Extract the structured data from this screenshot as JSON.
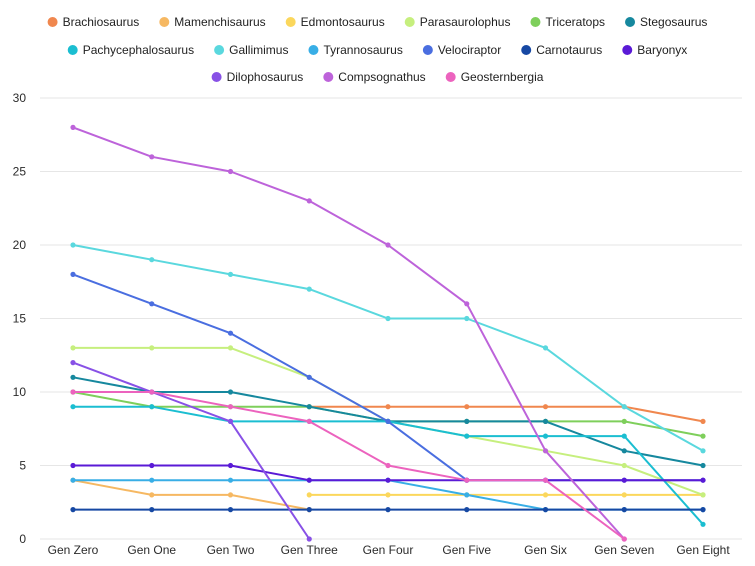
{
  "chart_data": {
    "type": "line",
    "title": "",
    "xlabel": "",
    "ylabel": "",
    "ylim": [
      0,
      30
    ],
    "yticks": [
      0,
      5,
      10,
      15,
      20,
      25,
      30
    ],
    "grid": "horizontal",
    "legend_position": "top",
    "categories": [
      "Gen Zero",
      "Gen One",
      "Gen Two",
      "Gen Three",
      "Gen Four",
      "Gen Five",
      "Gen Six",
      "Gen Seven",
      "Gen Eight"
    ],
    "series": [
      {
        "name": "Brachiosaurus",
        "color": "#f0874e",
        "values": [
          null,
          null,
          null,
          9,
          9,
          9,
          9,
          9,
          8
        ]
      },
      {
        "name": "Mamenchisaurus",
        "color": "#f6b862",
        "values": [
          4,
          3,
          3,
          2,
          null,
          null,
          null,
          null,
          null
        ]
      },
      {
        "name": "Edmontosaurus",
        "color": "#fbd75c",
        "values": [
          null,
          null,
          null,
          3,
          3,
          3,
          3,
          3,
          3
        ]
      },
      {
        "name": "Parasaurolophus",
        "color": "#c6ef7e",
        "values": [
          13,
          13,
          13,
          11,
          8,
          7,
          6,
          5,
          3
        ]
      },
      {
        "name": "Triceratops",
        "color": "#7ecf5b",
        "values": [
          10,
          9,
          9,
          9,
          8,
          8,
          8,
          8,
          7
        ]
      },
      {
        "name": "Stegosaurus",
        "color": "#16889e",
        "values": [
          11,
          10,
          10,
          9,
          8,
          8,
          8,
          6,
          5
        ]
      },
      {
        "name": "Pachycephalosaurus",
        "color": "#1bbed1",
        "values": [
          9,
          9,
          8,
          8,
          8,
          7,
          7,
          7,
          1
        ]
      },
      {
        "name": "Gallimimus",
        "color": "#5ad8de",
        "values": [
          20,
          19,
          18,
          17,
          15,
          15,
          13,
          9,
          6
        ]
      },
      {
        "name": "Tyrannosaurus",
        "color": "#38aee6",
        "values": [
          4,
          4,
          4,
          4,
          4,
          3,
          2,
          2,
          2
        ]
      },
      {
        "name": "Velociraptor",
        "color": "#4a6ee0",
        "values": [
          18,
          16,
          14,
          11,
          8,
          4,
          4,
          4,
          4
        ]
      },
      {
        "name": "Carnotaurus",
        "color": "#1648a3",
        "values": [
          2,
          2,
          2,
          2,
          2,
          2,
          2,
          2,
          2
        ]
      },
      {
        "name": "Baryonyx",
        "color": "#5a1ad6",
        "values": [
          5,
          5,
          5,
          4,
          4,
          4,
          4,
          4,
          4
        ]
      },
      {
        "name": "Dilophosaurus",
        "color": "#8851e6",
        "values": [
          12,
          10,
          8,
          0,
          null,
          null,
          null,
          null,
          null
        ]
      },
      {
        "name": "Compsognathus",
        "color": "#bd63da",
        "values": [
          28,
          26,
          25,
          23,
          20,
          16,
          6,
          0,
          null
        ]
      },
      {
        "name": "Geosternbergia",
        "color": "#ec63be",
        "values": [
          10,
          10,
          9,
          8,
          5,
          4,
          4,
          0,
          null
        ]
      }
    ]
  }
}
